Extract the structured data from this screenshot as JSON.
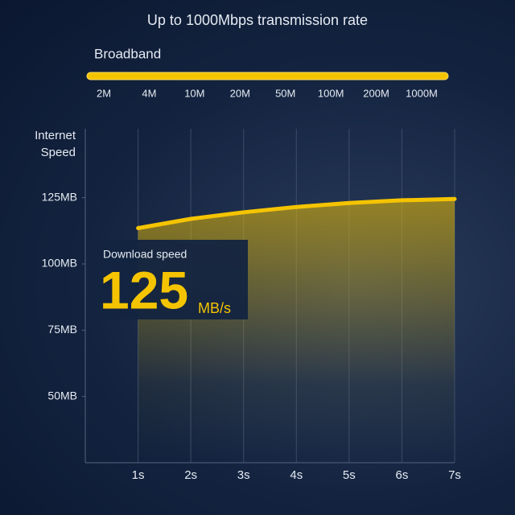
{
  "header": {
    "title": "Up to 1000Mbps transmission rate"
  },
  "broadband": {
    "label": "Broadband",
    "scale": [
      "2M",
      "4M",
      "10M",
      "20M",
      "50M",
      "100M",
      "200M",
      "1000M"
    ]
  },
  "callout": {
    "label": "Download speed",
    "value": "125",
    "unit": "MB/s"
  },
  "chart_data": {
    "type": "line",
    "y_label": "Internet Speed",
    "x": [
      1,
      2,
      3,
      4,
      5,
      6,
      7
    ],
    "series": [
      {
        "color": "#f5c400",
        "values": [
          113.5,
          117,
          119.5,
          121.5,
          123,
          124,
          124.5
        ]
      }
    ],
    "xlim": [
      0,
      7
    ],
    "xticks": [
      {
        "value": 1,
        "label": "1s"
      },
      {
        "value": 2,
        "label": "2s"
      },
      {
        "value": 3,
        "label": "3s"
      },
      {
        "value": 4,
        "label": "4s"
      },
      {
        "value": 5,
        "label": "5s"
      },
      {
        "value": 6,
        "label": "6s"
      },
      {
        "value": 7,
        "label": "7s"
      }
    ],
    "ylim": [
      25,
      151
    ],
    "yticks": [
      {
        "value": 50,
        "label": "50MB"
      },
      {
        "value": 75,
        "label": "75MB"
      },
      {
        "value": 100,
        "label": "100MB"
      },
      {
        "value": 125,
        "label": "125MB"
      }
    ],
    "grid": true
  }
}
